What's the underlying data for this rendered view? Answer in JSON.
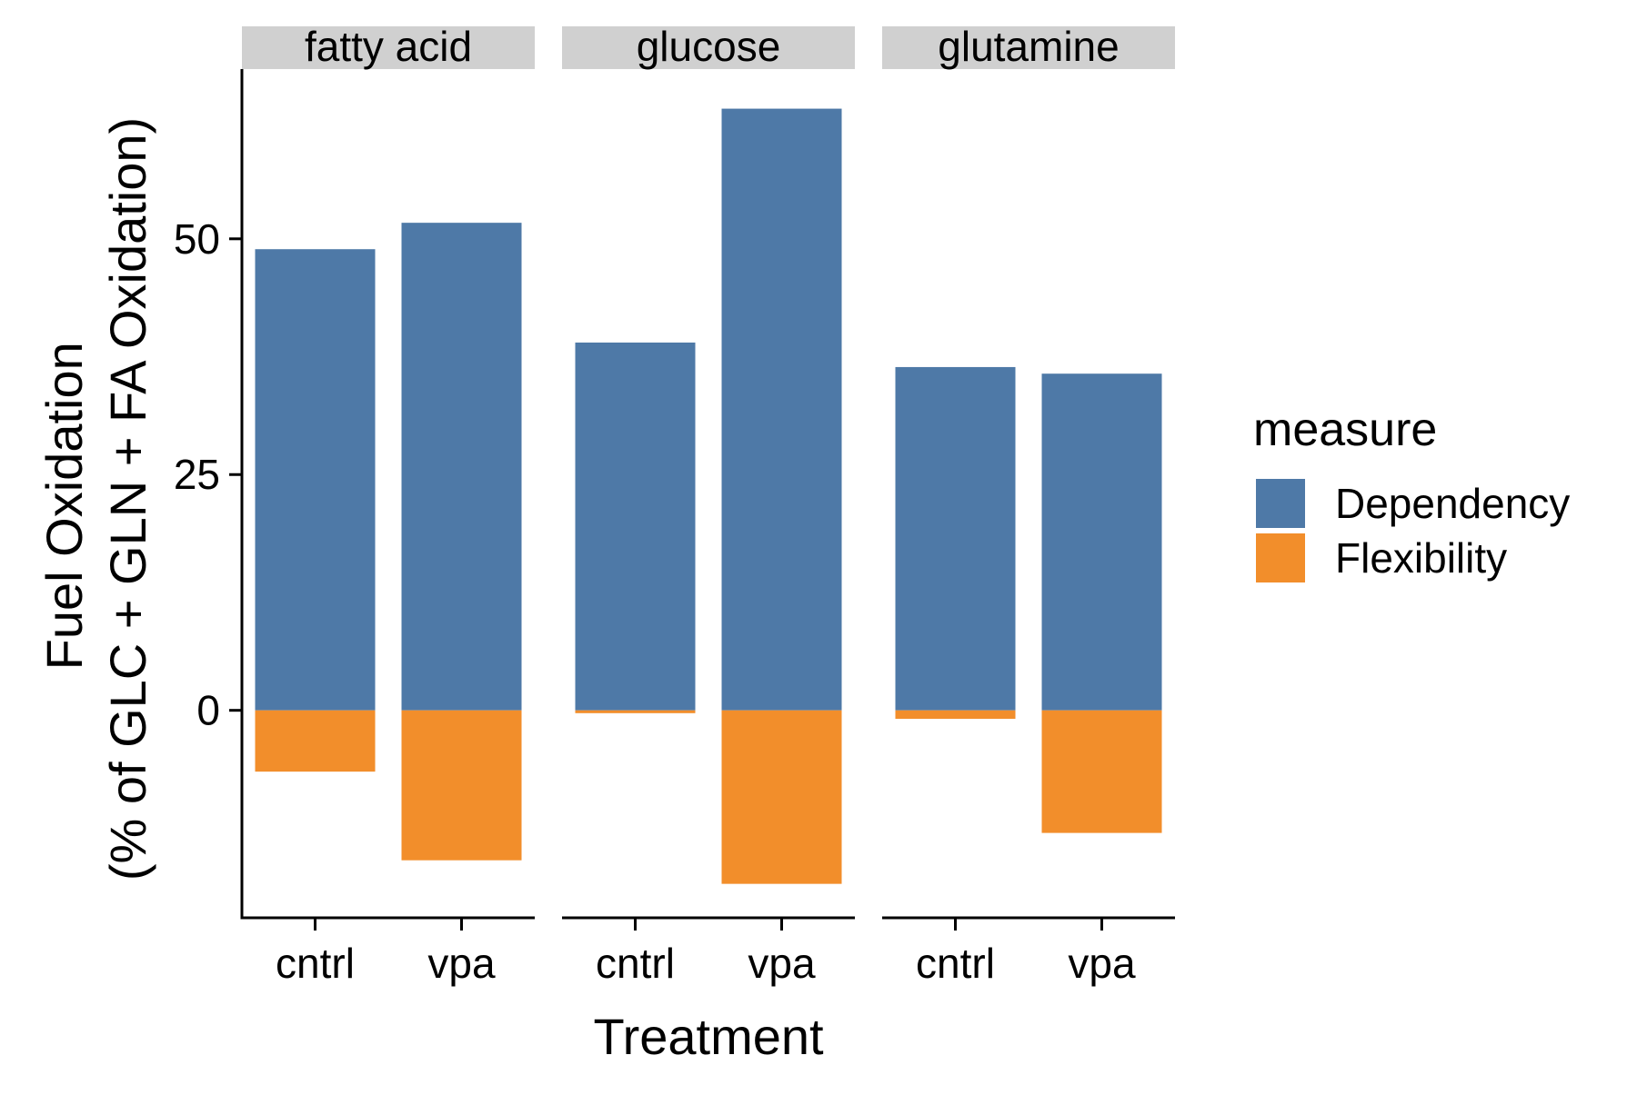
{
  "chart_data": {
    "type": "bar",
    "stacked": true,
    "facet_by": "fuel",
    "facets": [
      "fatty acid",
      "glucose",
      "glutamine"
    ],
    "categories": [
      "cntrl",
      "vpa"
    ],
    "xlabel": "Treatment",
    "ylabel": [
      "Fuel Oxidation",
      "(% of GLC + GLN + FA Oxidation)"
    ],
    "ylim": [
      -22,
      68
    ],
    "yticks": [
      0,
      25,
      50
    ],
    "legend": {
      "title": "measure",
      "position": "right",
      "items": [
        {
          "name": "Dependency",
          "color": "#4E79A7"
        },
        {
          "name": "Flexibility",
          "color": "#F28E2B"
        }
      ]
    },
    "grid": false,
    "strip_color": "#D0D0D0",
    "series": [
      {
        "name": "Dependency",
        "color": "#4E79A7",
        "values": {
          "fatty acid": [
            48.9,
            51.7
          ],
          "glucose": [
            39.0,
            63.8
          ],
          "glutamine": [
            36.4,
            35.7
          ]
        }
      },
      {
        "name": "Flexibility",
        "color": "#F28E2B",
        "values": {
          "fatty acid": [
            -6.5,
            -15.9
          ],
          "glucose": [
            -0.3,
            -18.4
          ],
          "glutamine": [
            -0.9,
            -13.0
          ]
        }
      }
    ]
  }
}
